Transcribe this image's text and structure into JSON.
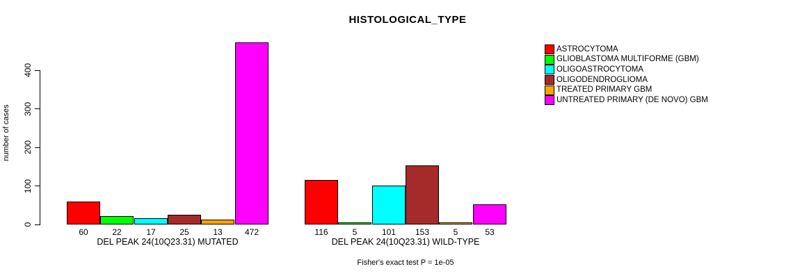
{
  "chart_data": {
    "type": "bar",
    "title": "HISTOLOGICAL_TYPE",
    "ylabel": "number of cases",
    "ylim": [
      0,
      472
    ],
    "yticks": [
      0,
      100,
      200,
      300,
      400
    ],
    "grid": false,
    "legend_position": "right",
    "categories": [
      "DEL PEAK 24(10Q23.31) MUTATED",
      "DEL PEAK 24(10Q23.31) WILD-TYPE"
    ],
    "series": [
      {
        "name": "ASTROCYTOMA",
        "color": "#FF0000",
        "values": [
          60,
          116
        ]
      },
      {
        "name": "GLIOBLASTOMA MULTIFORME (GBM)",
        "color": "#00FF00",
        "values": [
          22,
          5
        ]
      },
      {
        "name": "OLIGOASTROCYTOMA",
        "color": "#00FFFF",
        "values": [
          17,
          101
        ]
      },
      {
        "name": "OLIGODENDROGLIOMA",
        "color": "#A52A2A",
        "values": [
          25,
          153
        ]
      },
      {
        "name": "TREATED PRIMARY GBM",
        "color": "#FFA500",
        "values": [
          13,
          5
        ]
      },
      {
        "name": "UNTREATED PRIMARY (DE NOVO) GBM",
        "color": "#FF00FF",
        "values": [
          472,
          53
        ]
      }
    ],
    "annotation": "Fisher's exact test P = 1e-05"
  }
}
